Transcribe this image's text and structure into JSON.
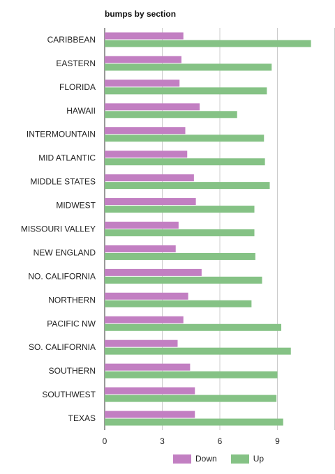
{
  "chart_data": {
    "type": "bar",
    "orientation": "horizontal",
    "title": "bumps by section",
    "categories": [
      "CARIBBEAN",
      "EASTERN",
      "FLORIDA",
      "HAWAII",
      "INTERMOUNTAIN",
      "MID ATLANTIC",
      "MIDDLE STATES",
      "MIDWEST",
      "MISSOURI VALLEY",
      "NEW ENGLAND",
      "NO. CALIFORNIA",
      "NORTHERN",
      "PACIFIC NW",
      "SO. CALIFORNIA",
      "SOUTHERN",
      "SOUTHWEST",
      "TEXAS"
    ],
    "series": [
      {
        "name": "Down",
        "color": "#c27fc2",
        "values": [
          4.1,
          4.0,
          3.9,
          4.95,
          4.2,
          4.3,
          4.65,
          4.75,
          3.85,
          3.7,
          5.05,
          4.35,
          4.1,
          3.8,
          4.45,
          4.7,
          4.7
        ]
      },
      {
        "name": "Up",
        "color": "#85c285",
        "values": [
          10.75,
          8.7,
          8.45,
          6.9,
          8.3,
          8.35,
          8.6,
          7.8,
          7.8,
          7.85,
          8.2,
          7.65,
          9.2,
          9.7,
          9.0,
          8.95,
          9.3
        ]
      }
    ],
    "xlim": [
      0,
      12
    ],
    "xticks": [
      0,
      3,
      6,
      9
    ],
    "grid": true,
    "legend_position": "bottom"
  }
}
